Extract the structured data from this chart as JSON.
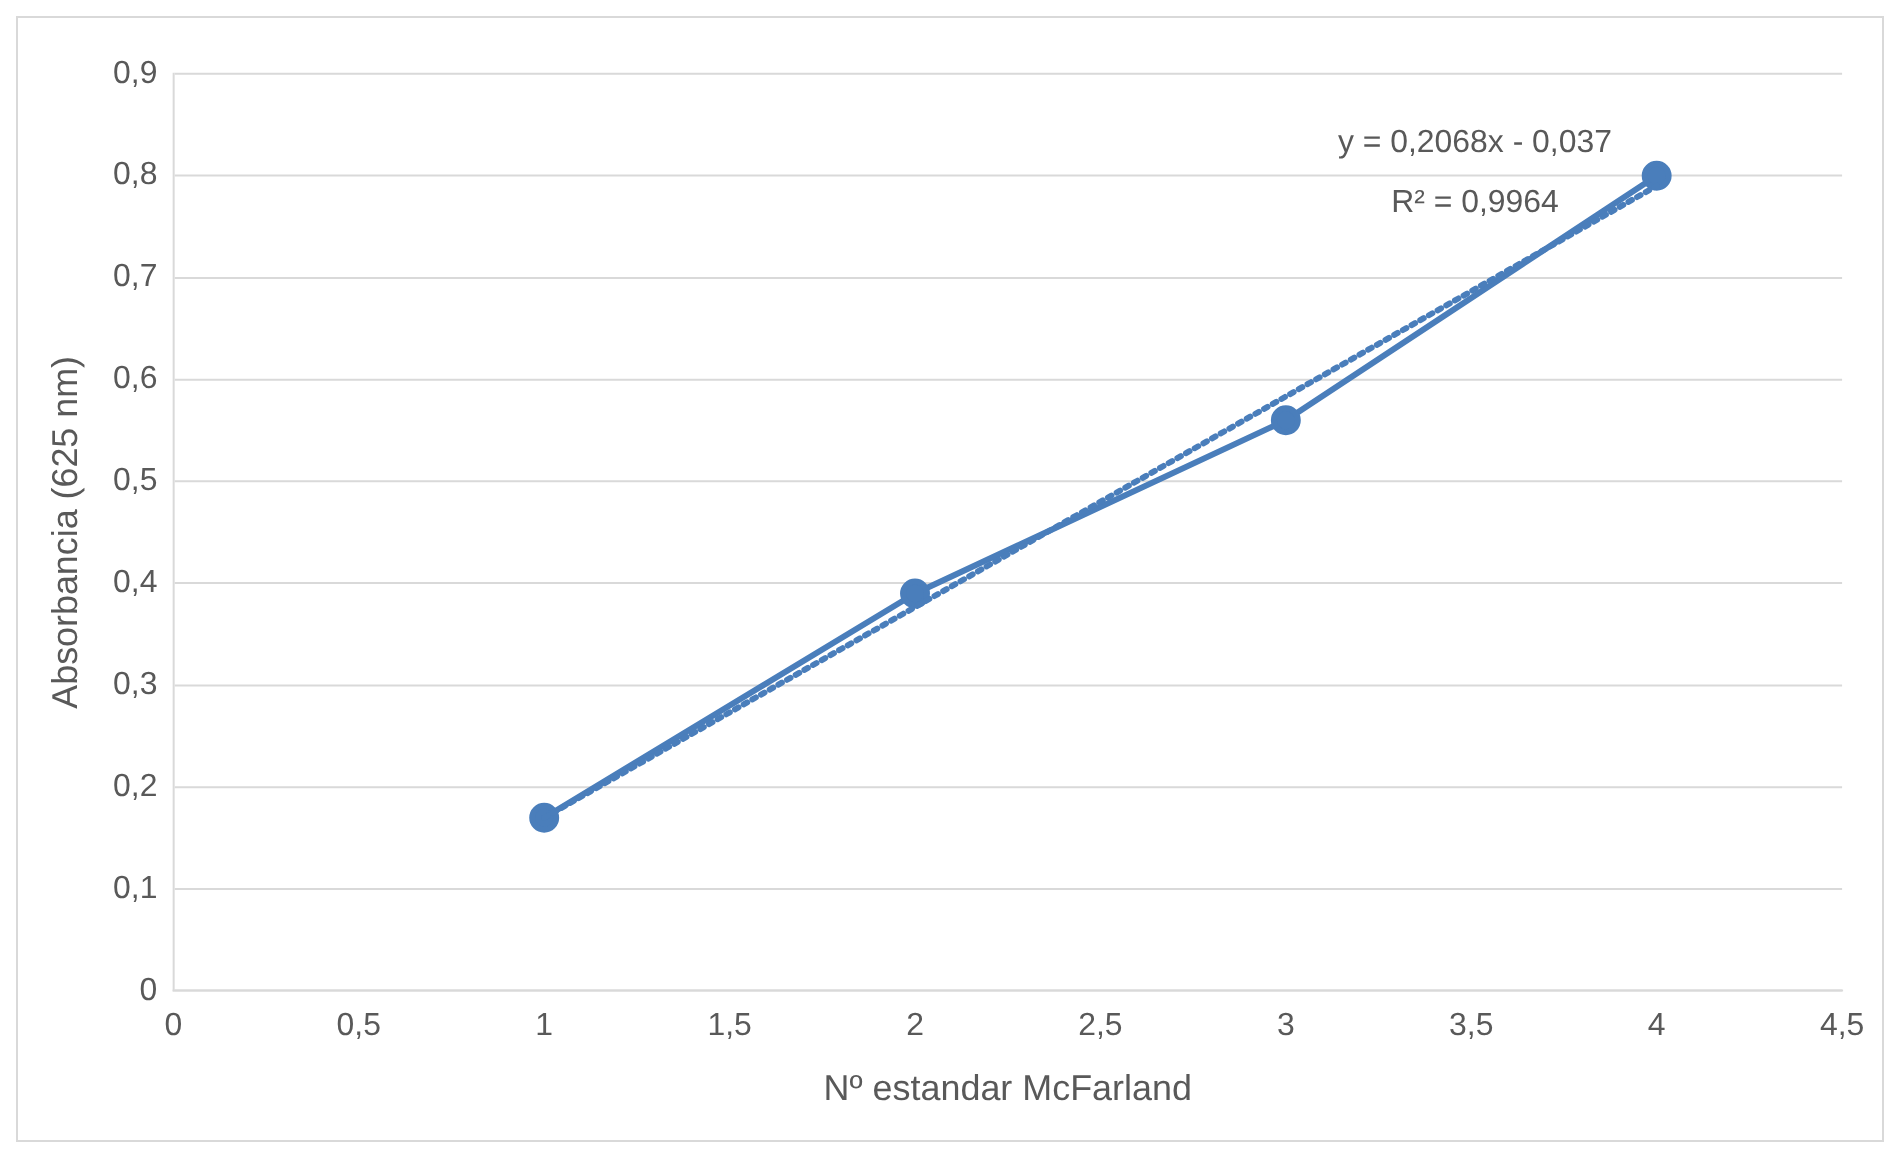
{
  "chart_data": {
    "type": "line",
    "xlabel": "Nº estandar McFarland",
    "ylabel": "Absorbancia (625 nm)",
    "series": [
      {
        "color": "#4a7ebb",
        "x": [
          1,
          2,
          3,
          4
        ],
        "values": [
          0.17,
          0.39,
          0.56,
          0.8
        ],
        "marker": "circle",
        "line_style": "solid"
      },
      {
        "color": "#4a7ebb",
        "x": [
          1,
          4
        ],
        "values": [
          0.17,
          0.79
        ],
        "marker": "none",
        "line_style": "dotted"
      }
    ],
    "xlim": [
      0,
      4.5
    ],
    "xticks": [
      0,
      {
        "value": 0.5,
        "label": "0,5"
      },
      1,
      {
        "value": 1.5,
        "label": "1,5"
      },
      2,
      {
        "value": 2.5,
        "label": "2,5"
      },
      3,
      {
        "value": 3.5,
        "label": "3,5"
      },
      4,
      {
        "value": 4.5,
        "label": "4,5"
      }
    ],
    "ylim": [
      0,
      0.9
    ],
    "yticks": [
      0,
      {
        "value": 0.1,
        "label": "0,1"
      },
      {
        "value": 0.2,
        "label": "0,2"
      },
      {
        "value": 0.3,
        "label": "0,3"
      },
      {
        "value": 0.4,
        "label": "0,4"
      },
      {
        "value": 0.5,
        "label": "0,5"
      },
      {
        "value": 0.6,
        "label": "0,6"
      },
      {
        "value": 0.7,
        "label": "0,7"
      },
      {
        "value": 0.8,
        "label": "0,8"
      },
      {
        "value": 0.9,
        "label": "0,9"
      }
    ],
    "grid": "y",
    "legend": false,
    "annotations": [
      "y = 0,2068x - 0,037",
      "R² = 0,9964"
    ]
  }
}
